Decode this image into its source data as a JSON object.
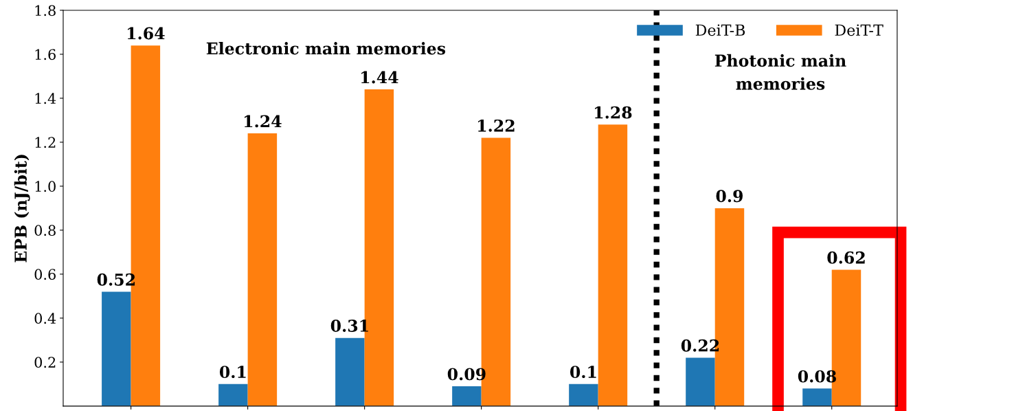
{
  "chart_data": {
    "type": "bar",
    "ylabel": "EPB (nJ/bit)",
    "categories": [
      null,
      null,
      null,
      null,
      null,
      null,
      null
    ],
    "series": [
      {
        "name": "DeiT-B",
        "color": "#1f77b4",
        "values": [
          0.52,
          0.1,
          0.31,
          0.09,
          0.1,
          0.22,
          0.08
        ]
      },
      {
        "name": "DeiT-T",
        "color": "#ff7f0e",
        "values": [
          1.64,
          1.24,
          1.44,
          1.22,
          1.28,
          0.9,
          0.62
        ]
      }
    ],
    "ylim": [
      0,
      1.8
    ],
    "yticks": [
      0.2,
      0.4,
      0.6,
      0.8,
      {
        "value": 1.0,
        "label": "1.0"
      },
      1.2,
      1.4,
      1.6,
      1.8
    ],
    "data_labels": true,
    "legend": "top right",
    "grid": false,
    "annotations": [
      {
        "text": "Electronic main memories"
      },
      {
        "text": "Photonic main\nmemories"
      }
    ]
  }
}
